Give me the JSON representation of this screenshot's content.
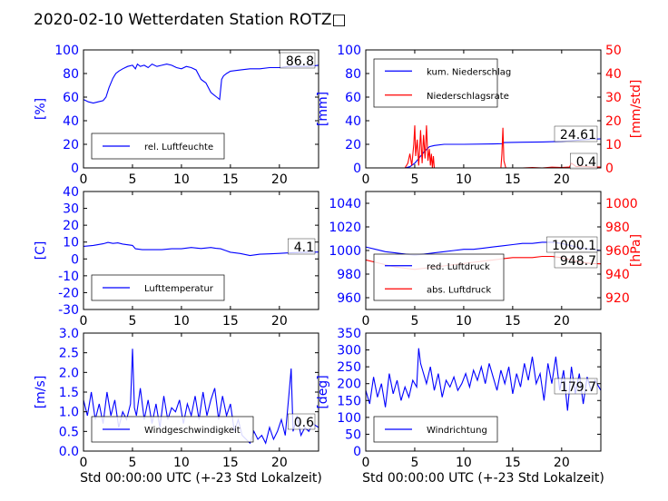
{
  "title": "2020-02-10 Wetterdaten Station ROTZ□",
  "colors": {
    "blue": "#0000ff",
    "red": "#ff0000",
    "grid_text": "#000000"
  },
  "chart_data": [
    {
      "id": "humidity",
      "type": "line",
      "xlim": [
        0,
        24
      ],
      "xticks": [
        0,
        5,
        10,
        15,
        20
      ],
      "ylim": [
        0,
        100
      ],
      "yticks": [
        0,
        20,
        40,
        60,
        80,
        100
      ],
      "ylabel": "[%]",
      "current_value": "86.8",
      "legend": [
        "rel. Luftfeuchte"
      ],
      "series": [
        {
          "name": "rel. Luftfeuchte",
          "color": "#0000ff",
          "x": [
            0,
            0.5,
            1,
            1.5,
            2,
            2.3,
            2.6,
            3,
            3.3,
            3.6,
            4,
            4.5,
            5,
            5.3,
            5.5,
            5.8,
            6.2,
            6.6,
            7,
            7.5,
            8,
            8.5,
            9,
            9.5,
            10,
            10.5,
            11,
            11.5,
            12,
            12.5,
            13,
            13.3,
            13.6,
            13.9,
            14.1,
            14.3,
            14.6,
            15,
            16,
            17,
            18,
            19,
            20,
            21,
            22,
            23,
            24
          ],
          "y": [
            58,
            56,
            55,
            56,
            57,
            60,
            68,
            76,
            80,
            82,
            84,
            86,
            87,
            84,
            88,
            86,
            87,
            85,
            88,
            86,
            87,
            88,
            87,
            85,
            84,
            86,
            85,
            83,
            75,
            72,
            64,
            62,
            60,
            58,
            75,
            78,
            80,
            82,
            83,
            84,
            84,
            85,
            85,
            86,
            86,
            86,
            87
          ]
        }
      ]
    },
    {
      "id": "precip",
      "type": "line",
      "xlim": [
        0,
        24
      ],
      "xticks": [
        0,
        5,
        10,
        15,
        20
      ],
      "ylim": [
        0,
        100
      ],
      "yticks": [
        0,
        20,
        40,
        60,
        80,
        100
      ],
      "ylabel": "[mm]",
      "ylim2": [
        0,
        50
      ],
      "yticks2": [
        0,
        10,
        20,
        30,
        40,
        50
      ],
      "ylabel2": "[mm/std]",
      "current_value": "24.61",
      "current_value2": "0.4",
      "legend": [
        "kum. Niederschlag",
        "Niederschlagsrate"
      ],
      "series": [
        {
          "name": "kum. Niederschlag",
          "color": "#0000ff",
          "axis": "left",
          "x": [
            0,
            4,
            4.5,
            5,
            5.5,
            6,
            6.5,
            7,
            8,
            10,
            13,
            13.9,
            14.1,
            16,
            18,
            20,
            21,
            22,
            23,
            24
          ],
          "y": [
            0,
            0,
            1,
            4,
            9,
            14,
            18,
            19,
            20,
            20,
            20.3,
            20.5,
            21.5,
            21.8,
            22,
            22.5,
            23,
            23.8,
            24.3,
            24.6
          ]
        },
        {
          "name": "Niederschlagsrate",
          "color": "#ff0000",
          "axis": "right",
          "x": [
            0,
            4,
            4.3,
            4.5,
            4.7,
            4.9,
            5.0,
            5.1,
            5.25,
            5.4,
            5.5,
            5.6,
            5.75,
            5.9,
            6.05,
            6.2,
            6.35,
            6.5,
            6.6,
            6.7,
            6.8,
            6.9,
            7.0,
            7.5,
            8,
            13.8,
            13.9,
            14.0,
            14.1,
            14.3,
            16,
            17,
            18,
            19,
            20,
            20.8,
            21,
            21.5,
            22,
            23,
            24
          ],
          "y": [
            0,
            0,
            2,
            6,
            1,
            10,
            18,
            5,
            12,
            1,
            8,
            16,
            2,
            14,
            4,
            18,
            3,
            8,
            1,
            6,
            0,
            5,
            0,
            0,
            0,
            0,
            6,
            17,
            3,
            0,
            0,
            0.2,
            0,
            0.3,
            0.2,
            0.4,
            2,
            0.5,
            0.8,
            0.4,
            0.4
          ]
        }
      ]
    },
    {
      "id": "temperature",
      "type": "line",
      "xlim": [
        0,
        24
      ],
      "xticks": [
        0,
        5,
        10,
        15,
        20
      ],
      "ylim": [
        -30,
        40
      ],
      "yticks": [
        -30,
        -20,
        -10,
        0,
        10,
        20,
        30,
        40
      ],
      "ylabel": "[C]",
      "current_value": "4.1",
      "legend": [
        "Lufttemperatur"
      ],
      "series": [
        {
          "name": "Lufttemperatur",
          "color": "#0000ff",
          "x": [
            0,
            1,
            2,
            2.5,
            3,
            3.5,
            4,
            5,
            5.3,
            6,
            7,
            8,
            9,
            10,
            11,
            12,
            13,
            13.5,
            14,
            14.5,
            15,
            16,
            17,
            18,
            19,
            20,
            21,
            22,
            23,
            24
          ],
          "y": [
            7.5,
            8,
            9,
            9.8,
            9.2,
            9.5,
            8.8,
            8,
            6,
            5.5,
            5.5,
            5.5,
            6,
            6,
            6.8,
            6.2,
            6.8,
            6.3,
            6,
            5,
            4,
            3.2,
            2,
            2.8,
            3,
            3.3,
            3.6,
            3.8,
            4,
            4.1
          ]
        }
      ]
    },
    {
      "id": "pressure",
      "type": "line",
      "xlim": [
        0,
        24
      ],
      "xticks": [
        0,
        5,
        10,
        15,
        20
      ],
      "ylim": [
        950,
        1050
      ],
      "yticks": [
        960,
        980,
        1000,
        1020,
        1040
      ],
      "ylim2": [
        910,
        1010
      ],
      "yticks2": [
        920,
        940,
        960,
        980,
        1000
      ],
      "ylabel2": "[hPa]",
      "current_value": "1000.1",
      "current_value2": "948.7",
      "legend": [
        "red. Luftdruck",
        "abs. Luftdruck"
      ],
      "series": [
        {
          "name": "red. Luftdruck",
          "color": "#0000ff",
          "axis": "left",
          "x": [
            0,
            1,
            2,
            3,
            4,
            5,
            6,
            7,
            8,
            9,
            10,
            11,
            12,
            13,
            14,
            15,
            16,
            17,
            18,
            19,
            20,
            21,
            22,
            23,
            24
          ],
          "y": [
            1003,
            1001,
            999,
            998,
            997,
            996,
            997,
            998,
            999,
            1000,
            1001,
            1001,
            1002,
            1003,
            1004,
            1005,
            1006,
            1006,
            1007,
            1007,
            1006,
            1004,
            1002,
            1001,
            1000
          ]
        },
        {
          "name": "abs. Luftdruck",
          "color": "#ff0000",
          "axis": "right",
          "x": [
            0,
            1,
            2,
            3,
            4,
            5,
            6,
            7,
            8,
            9,
            10,
            11,
            12,
            13,
            14,
            15,
            16,
            17,
            18,
            19,
            20,
            21,
            22,
            23,
            24
          ],
          "y": [
            952,
            950,
            948,
            946,
            945,
            944,
            945,
            946,
            947,
            948,
            949,
            950,
            951,
            952,
            953,
            954,
            954,
            954,
            955,
            955,
            954,
            952,
            950,
            949,
            948.7
          ]
        }
      ]
    },
    {
      "id": "wind_speed",
      "type": "line",
      "xlim": [
        0,
        24
      ],
      "xticks": [
        0,
        5,
        10,
        15,
        20
      ],
      "xlabel": "Std 00:00:00 UTC (+-23 Std Lokalzeit)",
      "ylim": [
        0,
        3
      ],
      "yticks": [
        0.0,
        0.5,
        1.0,
        1.5,
        2.0,
        2.5,
        3.0
      ],
      "ylabel": "[m/s]",
      "current_value": "0.6",
      "legend": [
        "Windgeschwindigkeit"
      ],
      "series": [
        {
          "name": "Windgeschwindigkeit",
          "color": "#0000ff",
          "x": [
            0,
            0.4,
            0.8,
            1.2,
            1.6,
            2,
            2.4,
            2.8,
            3.2,
            3.6,
            4,
            4.4,
            4.8,
            5.0,
            5.2,
            5.4,
            5.8,
            6.2,
            6.6,
            7,
            7.4,
            7.8,
            8.2,
            8.6,
            9,
            9.4,
            9.8,
            10.2,
            10.6,
            11,
            11.4,
            11.8,
            12.2,
            12.6,
            13,
            13.4,
            13.8,
            14.2,
            14.6,
            15,
            15.4,
            15.8,
            16.2,
            16.6,
            17,
            17.4,
            17.8,
            18.2,
            18.6,
            19,
            19.4,
            19.8,
            20.2,
            20.6,
            21.0,
            21.2,
            21.4,
            21.8,
            22.2,
            22.6,
            23,
            23.4,
            24
          ],
          "y": [
            1.3,
            0.9,
            1.5,
            0.8,
            1.2,
            0.7,
            1.5,
            0.9,
            1.3,
            0.6,
            1.0,
            0.8,
            1.2,
            2.6,
            1.1,
            0.9,
            1.6,
            0.8,
            1.3,
            0.7,
            1.2,
            0.6,
            1.4,
            0.8,
            1.1,
            1.0,
            1.3,
            0.7,
            1.2,
            0.9,
            1.4,
            0.8,
            1.5,
            0.9,
            1.3,
            1.6,
            0.8,
            1.4,
            0.9,
            1.2,
            0.5,
            0.8,
            0.4,
            0.3,
            0.2,
            0.5,
            0.3,
            0.4,
            0.2,
            0.6,
            0.3,
            0.5,
            0.8,
            0.4,
            1.5,
            2.1,
            0.5,
            0.9,
            0.4,
            0.6,
            0.5,
            0.7,
            0.6
          ]
        }
      ]
    },
    {
      "id": "wind_dir",
      "type": "line",
      "xlim": [
        0,
        24
      ],
      "xticks": [
        0,
        5,
        10,
        15,
        20
      ],
      "xlabel": "Std 00:00:00 UTC (+-23 Std Lokalzeit)",
      "ylim": [
        0,
        350
      ],
      "yticks": [
        0,
        50,
        100,
        150,
        200,
        250,
        300,
        350
      ],
      "ylabel": "[deg]",
      "current_value": "179.7",
      "legend": [
        "Windrichtung"
      ],
      "series": [
        {
          "name": "Windrichtung",
          "color": "#0000ff",
          "x": [
            0,
            0.4,
            0.8,
            1.2,
            1.6,
            2,
            2.4,
            2.8,
            3.2,
            3.6,
            4,
            4.4,
            4.8,
            5.2,
            5.4,
            5.6,
            5.8,
            6.2,
            6.6,
            7,
            7.4,
            7.8,
            8.2,
            8.6,
            9,
            9.4,
            9.8,
            10.2,
            10.6,
            11,
            11.4,
            11.8,
            12.2,
            12.6,
            13,
            13.4,
            13.8,
            14.2,
            14.6,
            15,
            15.4,
            15.8,
            16.2,
            16.6,
            17,
            17.4,
            17.8,
            18.2,
            18.6,
            19,
            19.4,
            19.8,
            20.2,
            20.6,
            21,
            21.4,
            21.8,
            22.2,
            22.6,
            23,
            23.4,
            24
          ],
          "y": [
            180,
            140,
            220,
            160,
            200,
            130,
            230,
            170,
            210,
            150,
            190,
            160,
            210,
            190,
            305,
            260,
            240,
            200,
            250,
            180,
            230,
            160,
            210,
            190,
            220,
            180,
            200,
            230,
            190,
            240,
            210,
            250,
            200,
            260,
            220,
            180,
            240,
            200,
            250,
            170,
            230,
            190,
            260,
            210,
            280,
            200,
            230,
            150,
            260,
            200,
            280,
            180,
            240,
            120,
            250,
            170,
            230,
            140,
            220,
            180,
            210,
            180
          ]
        }
      ]
    }
  ]
}
